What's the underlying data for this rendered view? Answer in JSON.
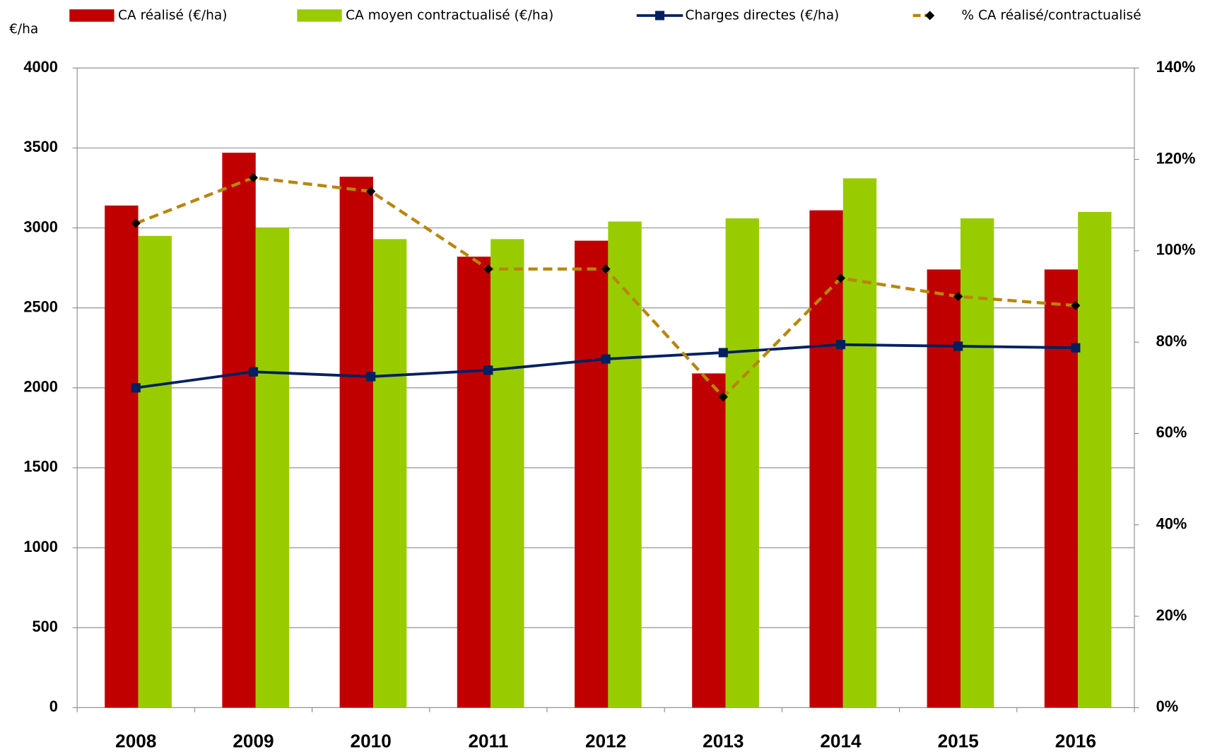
{
  "chart_data": {
    "type": "bar",
    "y_label": "€/ha",
    "categories": [
      "2008",
      "2009",
      "2010",
      "2011",
      "2012",
      "2013",
      "2014",
      "2015",
      "2016"
    ],
    "series": [
      {
        "name": "CA réalisé (€/ha)",
        "type": "bar",
        "color": "#c00000",
        "values": [
          3140,
          3470,
          3320,
          2820,
          2920,
          2090,
          3110,
          2740,
          2740
        ]
      },
      {
        "name": "CA moyen contractualisé (€/ha)",
        "type": "bar",
        "color": "#99cc00",
        "values": [
          2950,
          3000,
          2930,
          2930,
          3040,
          3060,
          3310,
          3060,
          3100
        ]
      },
      {
        "name": "Charges directes (€/ha)",
        "type": "line",
        "color": "#002060",
        "values": [
          2000,
          2100,
          2070,
          2110,
          2180,
          2220,
          2270,
          2260,
          2250
        ]
      },
      {
        "name": "% CA réalisé/contractualisé",
        "type": "line",
        "dashed": true,
        "axis": "y2",
        "color": "#b8860b",
        "values": [
          106,
          116,
          113,
          96,
          96,
          68,
          94,
          90,
          88
        ]
      }
    ],
    "ylim": [
      0,
      4000
    ],
    "yticks": [
      0,
      500,
      1000,
      1500,
      2000,
      2500,
      3000,
      3500,
      4000
    ],
    "y2lim": [
      0,
      140
    ],
    "y2ticks": [
      {
        "value": 0,
        "label": "0%"
      },
      {
        "value": 20,
        "label": "20%"
      },
      {
        "value": 40,
        "label": "40%"
      },
      {
        "value": 60,
        "label": "60%"
      },
      {
        "value": 80,
        "label": "80%"
      },
      {
        "value": 100,
        "label": "100%"
      },
      {
        "value": 120,
        "label": "120%"
      },
      {
        "value": 140,
        "label": "140%"
      }
    ],
    "grid": true,
    "legend": "top"
  }
}
